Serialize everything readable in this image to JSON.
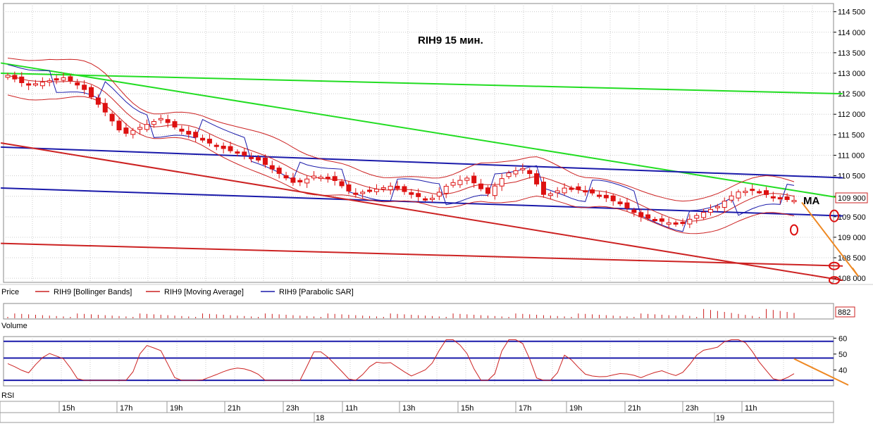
{
  "chart_data": [
    {
      "type": "candlestick",
      "title": "RIH9    15 мин.",
      "annotation": "MA",
      "panel_label": "Price",
      "legend": [
        {
          "label": "RIH9 [Bollinger Bands]",
          "color": "#cc2222"
        },
        {
          "label": "RIH9 [Moving Average]",
          "color": "#cc2222"
        },
        {
          "label": "RIH9 [Parabolic SAR]",
          "color": "#1a1aaa"
        }
      ],
      "y_ticks": [
        "114 500",
        "114 000",
        "113 500",
        "113 000",
        "112 500",
        "112 000",
        "111 500",
        "111 000",
        "110 500",
        "110 000",
        "109 500",
        "109 000",
        "108 500",
        "108 000"
      ],
      "y_tick_values": [
        114500,
        114000,
        113500,
        113000,
        112500,
        112000,
        111500,
        111000,
        110500,
        110000,
        109500,
        109000,
        108500,
        108000
      ],
      "ylim": [
        107900,
        114700
      ],
      "last_price_label": "109 900",
      "last_price": 109900,
      "candle_count": 114,
      "sample_prices": [
        112950,
        112700,
        112800,
        112900,
        112600,
        112100,
        111500,
        111700,
        111900,
        111600,
        111400,
        111200,
        111050,
        110900,
        110600,
        110300,
        110500,
        110400,
        110050,
        110150,
        110250,
        110050,
        109900,
        110300,
        110450,
        110050,
        110550,
        110700,
        110000,
        110200,
        110150,
        110000,
        109800,
        109500,
        109400,
        109300,
        109550,
        109750,
        110100,
        110150,
        109950,
        109900
      ]
    },
    {
      "type": "bar",
      "panel_label": "Volume",
      "last_value_label": "882",
      "last_value": 882
    },
    {
      "type": "line",
      "panel_label": "RSI",
      "y_ticks": [
        "60",
        "50",
        "40"
      ],
      "y_tick_values": [
        60,
        50,
        40
      ],
      "ylim": [
        30,
        61
      ],
      "levels": [
        58,
        47.5,
        33.5
      ]
    }
  ],
  "time_axis": {
    "hours": [
      "15h",
      "17h",
      "19h",
      "21h",
      "23h",
      "11h",
      "13h",
      "15h",
      "17h",
      "19h",
      "21h",
      "23h",
      "11h"
    ],
    "days": [
      "18",
      "19"
    ]
  },
  "colors": {
    "candle_down": "#dd1111",
    "candle_up": "#cc2222",
    "trend_green": "#22dd22",
    "channel_blue": "#1a1aaa",
    "trend_red": "#cc2222",
    "forecast_orange": "#ee8822",
    "grid": "#cccccc"
  }
}
